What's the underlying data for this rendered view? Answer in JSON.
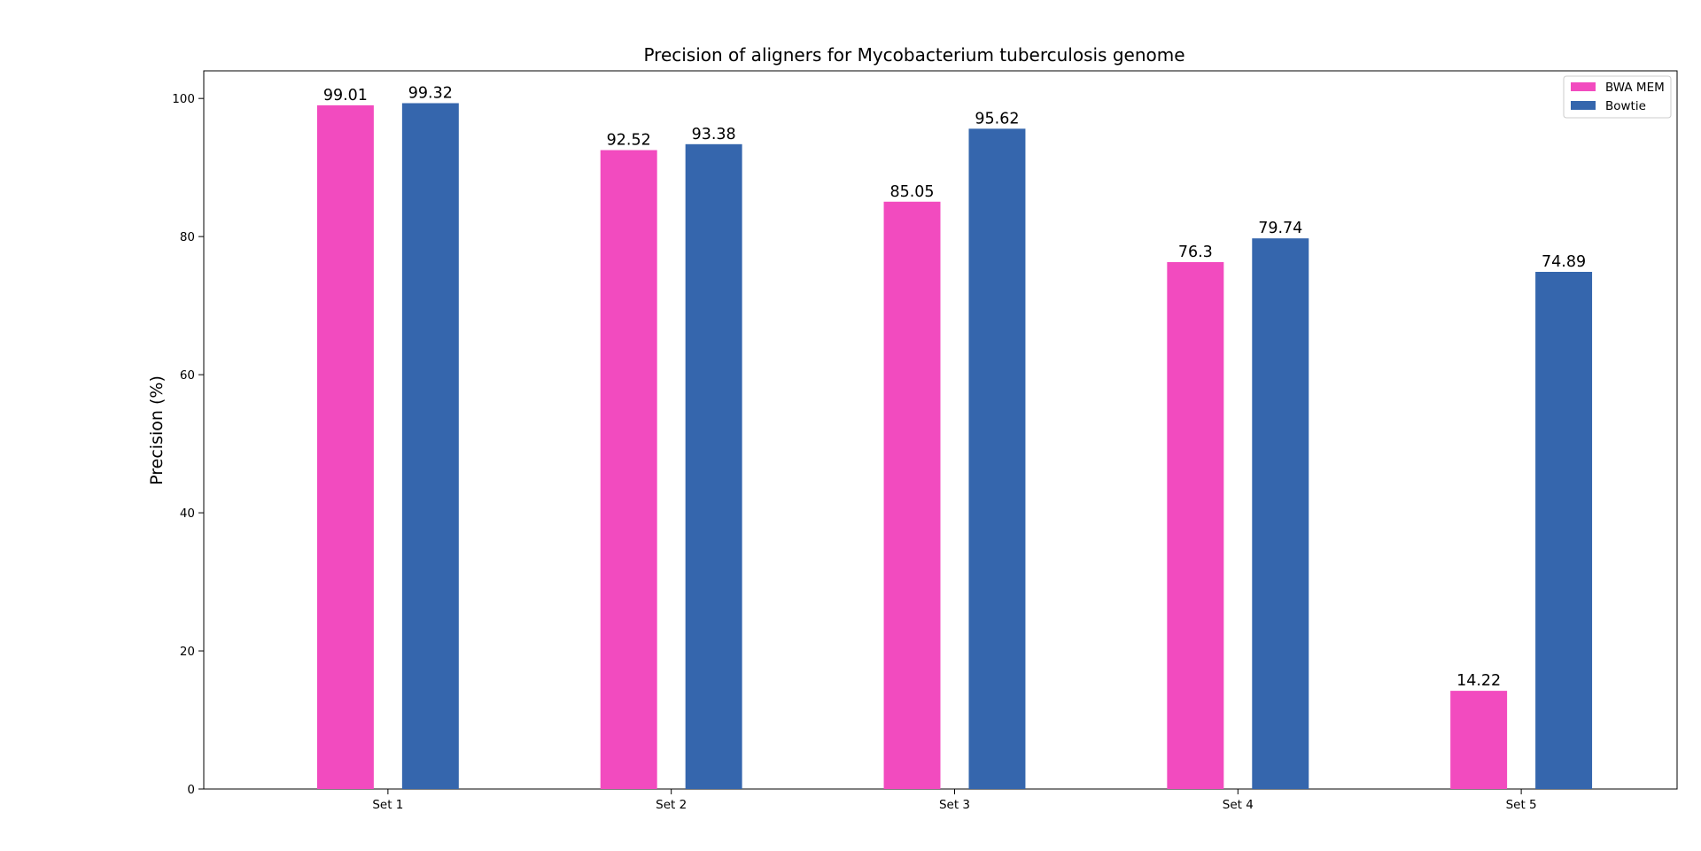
{
  "chart_data": {
    "type": "bar",
    "title": "Precision of aligners for Mycobacterium tuberculosis genome",
    "xlabel": "",
    "ylabel": "Precision (%)",
    "ylim": [
      0,
      104
    ],
    "yticks": [
      0,
      20,
      40,
      60,
      80,
      100
    ],
    "categories": [
      "Set 1",
      "Set 2",
      "Set 3",
      "Set 4",
      "Set 5"
    ],
    "series": [
      {
        "name": "BWA MEM",
        "color": "#f24bbf",
        "values": [
          99.01,
          92.52,
          85.05,
          76.3,
          14.22
        ],
        "labels": [
          "99.01",
          "92.52",
          "85.05",
          "76.3",
          "14.22"
        ]
      },
      {
        "name": "Bowtie",
        "color": "#3566ad",
        "values": [
          99.32,
          93.38,
          95.62,
          79.74,
          74.89
        ],
        "labels": [
          "99.32",
          "93.38",
          "95.62",
          "79.74",
          "74.89"
        ]
      }
    ],
    "grid": false,
    "legend_position": "top-right"
  }
}
